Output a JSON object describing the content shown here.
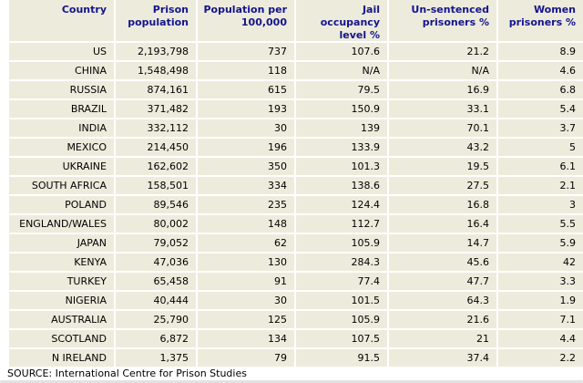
{
  "colors": {
    "cell_background": "#edebdc",
    "header_text": "#14148c",
    "body_text": "#000000",
    "gap": "#ffffff",
    "bottom_bar": "#e2e2e2"
  },
  "table": {
    "columns": [
      {
        "label": "Country"
      },
      {
        "label": "Prison\npopulation"
      },
      {
        "label": "Population per\n100,000"
      },
      {
        "label": "Jail\noccupancy\nlevel %"
      },
      {
        "label": "Un-sentenced\nprisoners %"
      },
      {
        "label": "Women\nprisoners %"
      }
    ],
    "rows": [
      {
        "country": "US",
        "prison_population": "2,193,798",
        "population_per_100k": "737",
        "jail_occupancy_pct": "107.6",
        "unsentenced_pct": "21.2",
        "women_pct": "8.9"
      },
      {
        "country": "CHINA",
        "prison_population": "1,548,498",
        "population_per_100k": "118",
        "jail_occupancy_pct": "N/A",
        "unsentenced_pct": "N/A",
        "women_pct": "4.6"
      },
      {
        "country": "RUSSIA",
        "prison_population": "874,161",
        "population_per_100k": "615",
        "jail_occupancy_pct": "79.5",
        "unsentenced_pct": "16.9",
        "women_pct": "6.8"
      },
      {
        "country": "BRAZIL",
        "prison_population": "371,482",
        "population_per_100k": "193",
        "jail_occupancy_pct": "150.9",
        "unsentenced_pct": "33.1",
        "women_pct": "5.4"
      },
      {
        "country": "INDIA",
        "prison_population": "332,112",
        "population_per_100k": "30",
        "jail_occupancy_pct": "139",
        "unsentenced_pct": "70.1",
        "women_pct": "3.7"
      },
      {
        "country": "MEXICO",
        "prison_population": "214,450",
        "population_per_100k": "196",
        "jail_occupancy_pct": "133.9",
        "unsentenced_pct": "43.2",
        "women_pct": "5"
      },
      {
        "country": "UKRAINE",
        "prison_population": "162,602",
        "population_per_100k": "350",
        "jail_occupancy_pct": "101.3",
        "unsentenced_pct": "19.5",
        "women_pct": "6.1"
      },
      {
        "country": "SOUTH AFRICA",
        "prison_population": "158,501",
        "population_per_100k": "334",
        "jail_occupancy_pct": "138.6",
        "unsentenced_pct": "27.5",
        "women_pct": "2.1"
      },
      {
        "country": "POLAND",
        "prison_population": "89,546",
        "population_per_100k": "235",
        "jail_occupancy_pct": "124.4",
        "unsentenced_pct": "16.8",
        "women_pct": "3"
      },
      {
        "country": "ENGLAND/WALES",
        "prison_population": "80,002",
        "population_per_100k": "148",
        "jail_occupancy_pct": "112.7",
        "unsentenced_pct": "16.4",
        "women_pct": "5.5"
      },
      {
        "country": "JAPAN",
        "prison_population": "79,052",
        "population_per_100k": "62",
        "jail_occupancy_pct": "105.9",
        "unsentenced_pct": "14.7",
        "women_pct": "5.9"
      },
      {
        "country": "KENYA",
        "prison_population": "47,036",
        "population_per_100k": "130",
        "jail_occupancy_pct": "284.3",
        "unsentenced_pct": "45.6",
        "women_pct": "42"
      },
      {
        "country": "TURKEY",
        "prison_population": "65,458",
        "population_per_100k": "91",
        "jail_occupancy_pct": "77.4",
        "unsentenced_pct": "47.7",
        "women_pct": "3.3"
      },
      {
        "country": "NIGERIA",
        "prison_population": "40,444",
        "population_per_100k": "30",
        "jail_occupancy_pct": "101.5",
        "unsentenced_pct": "64.3",
        "women_pct": "1.9"
      },
      {
        "country": "AUSTRALIA",
        "prison_population": "25,790",
        "population_per_100k": "125",
        "jail_occupancy_pct": "105.9",
        "unsentenced_pct": "21.6",
        "women_pct": "7.1"
      },
      {
        "country": "SCOTLAND",
        "prison_population": "6,872",
        "population_per_100k": "134",
        "jail_occupancy_pct": "107.5",
        "unsentenced_pct": "21",
        "women_pct": "4.4"
      },
      {
        "country": "N IRELAND",
        "prison_population": "1,375",
        "population_per_100k": "79",
        "jail_occupancy_pct": "91.5",
        "unsentenced_pct": "37.4",
        "women_pct": "2.2"
      }
    ]
  },
  "source": "SOURCE: International Centre for Prison Studies",
  "chart_data": {
    "type": "table",
    "title": "",
    "columns": [
      "Country",
      "Prison population",
      "Population per 100,000",
      "Jail occupancy level %",
      "Un-sentenced prisoners %",
      "Women prisoners %"
    ],
    "rows": [
      [
        "US",
        2193798,
        737,
        107.6,
        21.2,
        8.9
      ],
      [
        "CHINA",
        1548498,
        118,
        "N/A",
        "N/A",
        4.6
      ],
      [
        "RUSSIA",
        874161,
        615,
        79.5,
        16.9,
        6.8
      ],
      [
        "BRAZIL",
        371482,
        193,
        150.9,
        33.1,
        5.4
      ],
      [
        "INDIA",
        332112,
        30,
        139,
        70.1,
        3.7
      ],
      [
        "MEXICO",
        214450,
        196,
        133.9,
        43.2,
        5
      ],
      [
        "UKRAINE",
        162602,
        350,
        101.3,
        19.5,
        6.1
      ],
      [
        "SOUTH AFRICA",
        158501,
        334,
        138.6,
        27.5,
        2.1
      ],
      [
        "POLAND",
        89546,
        235,
        124.4,
        16.8,
        3
      ],
      [
        "ENGLAND/WALES",
        80002,
        148,
        112.7,
        16.4,
        5.5
      ],
      [
        "JAPAN",
        79052,
        62,
        105.9,
        14.7,
        5.9
      ],
      [
        "KENYA",
        47036,
        130,
        284.3,
        45.6,
        42
      ],
      [
        "TURKEY",
        65458,
        91,
        77.4,
        47.7,
        3.3
      ],
      [
        "NIGERIA",
        40444,
        30,
        101.5,
        64.3,
        1.9
      ],
      [
        "AUSTRALIA",
        25790,
        125,
        105.9,
        21.6,
        7.1
      ],
      [
        "SCOTLAND",
        6872,
        134,
        107.5,
        21,
        4.4
      ],
      [
        "N IRELAND",
        1375,
        79,
        91.5,
        37.4,
        2.2
      ]
    ],
    "source": "SOURCE: International Centre for Prison Studies"
  }
}
